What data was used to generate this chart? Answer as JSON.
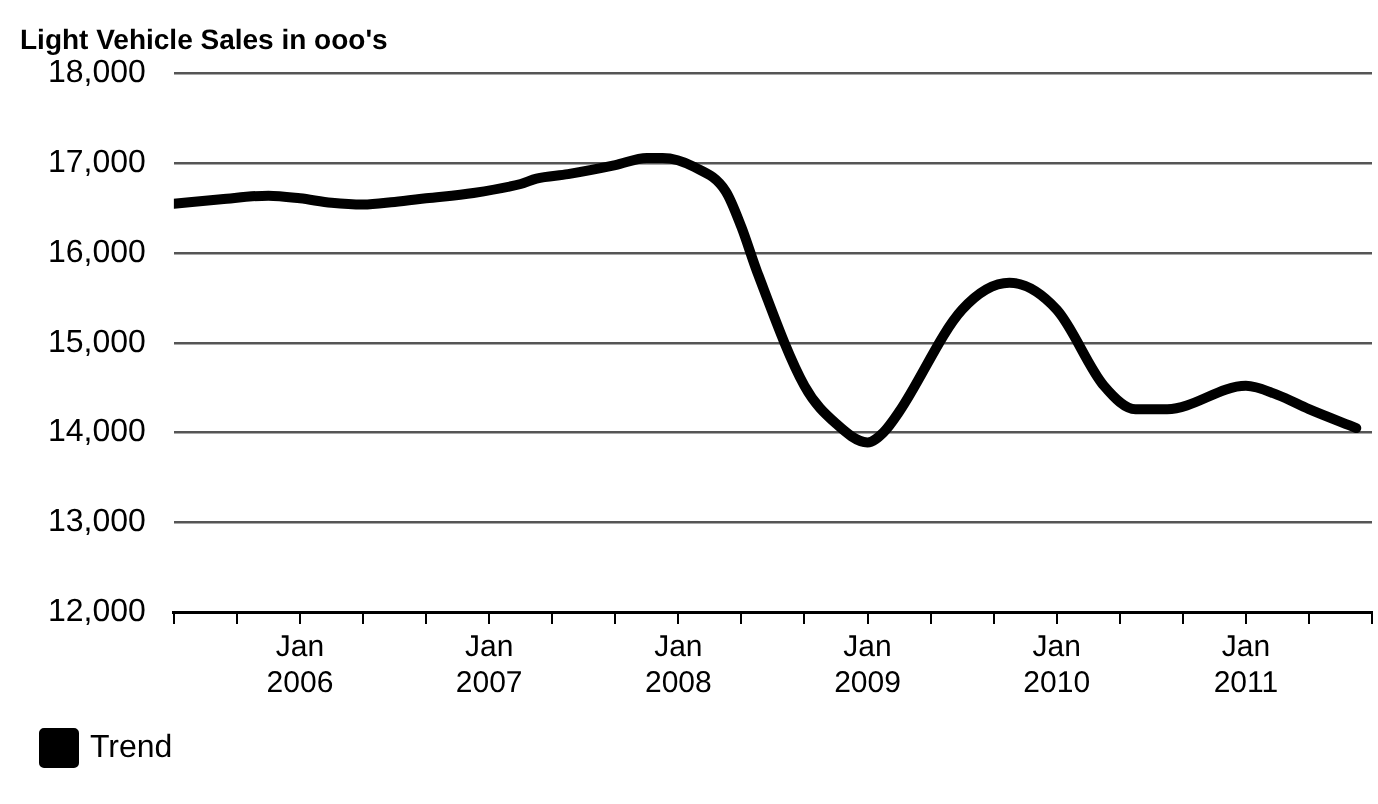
{
  "chart_data": {
    "type": "line",
    "title": "Light Vehicle Sales in ooo's",
    "x": [
      "2005-05",
      "2005-08",
      "2005-11",
      "2006-01",
      "2006-03",
      "2006-05",
      "2006-07",
      "2006-09",
      "2006-12",
      "2007-03",
      "2007-04",
      "2007-06",
      "2007-09",
      "2007-11",
      "2007-12",
      "2008-02",
      "2008-04",
      "2008-05",
      "2008-06",
      "2008-09",
      "2008-11",
      "2009-01",
      "2009-02",
      "2009-03",
      "2009-07",
      "2009-10",
      "2010-01",
      "2010-04",
      "2010-06",
      "2010-08",
      "2011-01",
      "2011-03",
      "2011-05",
      "2011-08"
    ],
    "series": [
      {
        "name": "Trend",
        "color": "#000000",
        "values": [
          16550,
          16600,
          16640,
          16610,
          16560,
          16540,
          16570,
          16610,
          16670,
          16770,
          16830,
          16880,
          16980,
          17060,
          17060,
          16960,
          16690,
          16290,
          15790,
          14520,
          14100,
          13890,
          14000,
          14230,
          15370,
          15670,
          15370,
          14520,
          14260,
          14260,
          14520,
          14420,
          14260,
          14050
        ]
      }
    ],
    "xlim": [
      "2005-05",
      "2011-09"
    ],
    "xticks": [
      {
        "value": "2005-05",
        "label": null
      },
      {
        "value": "2005-09",
        "label": null
      },
      {
        "value": "2006-01",
        "label": "Jan 2006"
      },
      {
        "value": "2006-05",
        "label": null
      },
      {
        "value": "2006-09",
        "label": null
      },
      {
        "value": "2007-01",
        "label": "Jan 2007"
      },
      {
        "value": "2007-05",
        "label": null
      },
      {
        "value": "2007-09",
        "label": null
      },
      {
        "value": "2008-01",
        "label": "Jan 2008"
      },
      {
        "value": "2008-05",
        "label": null
      },
      {
        "value": "2008-09",
        "label": null
      },
      {
        "value": "2009-01",
        "label": "Jan 2009"
      },
      {
        "value": "2009-05",
        "label": null
      },
      {
        "value": "2009-09",
        "label": null
      },
      {
        "value": "2010-01",
        "label": "Jan 2010"
      },
      {
        "value": "2010-05",
        "label": null
      },
      {
        "value": "2010-09",
        "label": null
      },
      {
        "value": "2011-01",
        "label": "Jan 2011"
      },
      {
        "value": "2011-05",
        "label": null
      },
      {
        "value": "2011-09",
        "label": null
      }
    ],
    "ylim": [
      12000,
      18000
    ],
    "yticks": [
      {
        "value": 12000,
        "label": "12,000"
      },
      {
        "value": 13000,
        "label": "13,000"
      },
      {
        "value": 14000,
        "label": "14,000"
      },
      {
        "value": 15000,
        "label": "15,000"
      },
      {
        "value": 16000,
        "label": "16,000"
      },
      {
        "value": 17000,
        "label": "17,000"
      },
      {
        "value": 18000,
        "label": "18,000"
      }
    ],
    "grid": "y",
    "legend": "bottom left",
    "marker": "none",
    "line_style": "solid"
  }
}
